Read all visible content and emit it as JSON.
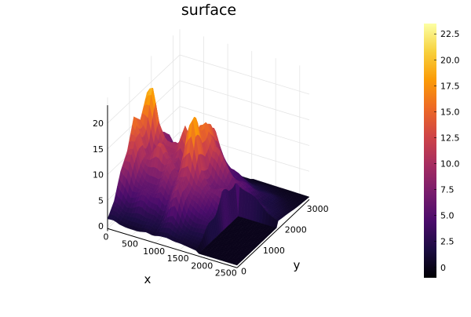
{
  "chart_data": {
    "type": "surface",
    "title": "surface",
    "xlabel": "x",
    "ylabel": "y",
    "zlabel": "",
    "x_ticks": [
      0,
      500,
      1000,
      1500,
      2000,
      2500
    ],
    "y_ticks": [
      0,
      1000,
      2000,
      3000
    ],
    "z_ticks": [
      0,
      5,
      10,
      15,
      20
    ],
    "x_range": [
      0,
      2700
    ],
    "y_range": [
      0,
      3300
    ],
    "z_range": [
      -1,
      23.5
    ],
    "colorbar": {
      "colormap": "inferno",
      "ticks": [
        0.0,
        2.5,
        5.0,
        7.5,
        10.0,
        12.5,
        15.0,
        17.5,
        20.0,
        22.5
      ],
      "tick_labels": [
        "0",
        "2.5",
        "5.0",
        "7.5",
        "10.0",
        "12.5",
        "15.0",
        "17.5",
        "20.0",
        "22.5"
      ],
      "range": [
        -1,
        23.5
      ]
    },
    "grid": true,
    "legend": "none",
    "x_profile": [
      [
        0,
        22
      ],
      [
        120,
        20.5
      ],
      [
        250,
        14
      ],
      [
        380,
        13.5
      ],
      [
        520,
        15
      ],
      [
        650,
        13
      ],
      [
        800,
        15
      ],
      [
        950,
        11
      ],
      [
        1100,
        20
      ],
      [
        1220,
        23.5
      ],
      [
        1400,
        14
      ],
      [
        1600,
        10.5
      ],
      [
        1800,
        9
      ],
      [
        2100,
        6
      ],
      [
        2450,
        3
      ],
      [
        2700,
        1.5
      ]
    ],
    "y_profile": [
      [
        0,
        0
      ],
      [
        400,
        3
      ],
      [
        800,
        9
      ],
      [
        1200,
        13
      ],
      [
        1500,
        20.5
      ],
      [
        1800,
        16
      ],
      [
        2100,
        18
      ],
      [
        2400,
        12
      ],
      [
        2700,
        9
      ],
      [
        3000,
        4
      ],
      [
        3300,
        1.5
      ]
    ]
  },
  "colors": {
    "colormap_stops": [
      "#000004",
      "#1b0c41",
      "#4a0c6b",
      "#781c6d",
      "#a52c60",
      "#cf4446",
      "#ed6925",
      "#fb9b06",
      "#f7d13d",
      "#fcffa4"
    ],
    "grid": "#e5e5e5",
    "axis": "#000000"
  }
}
